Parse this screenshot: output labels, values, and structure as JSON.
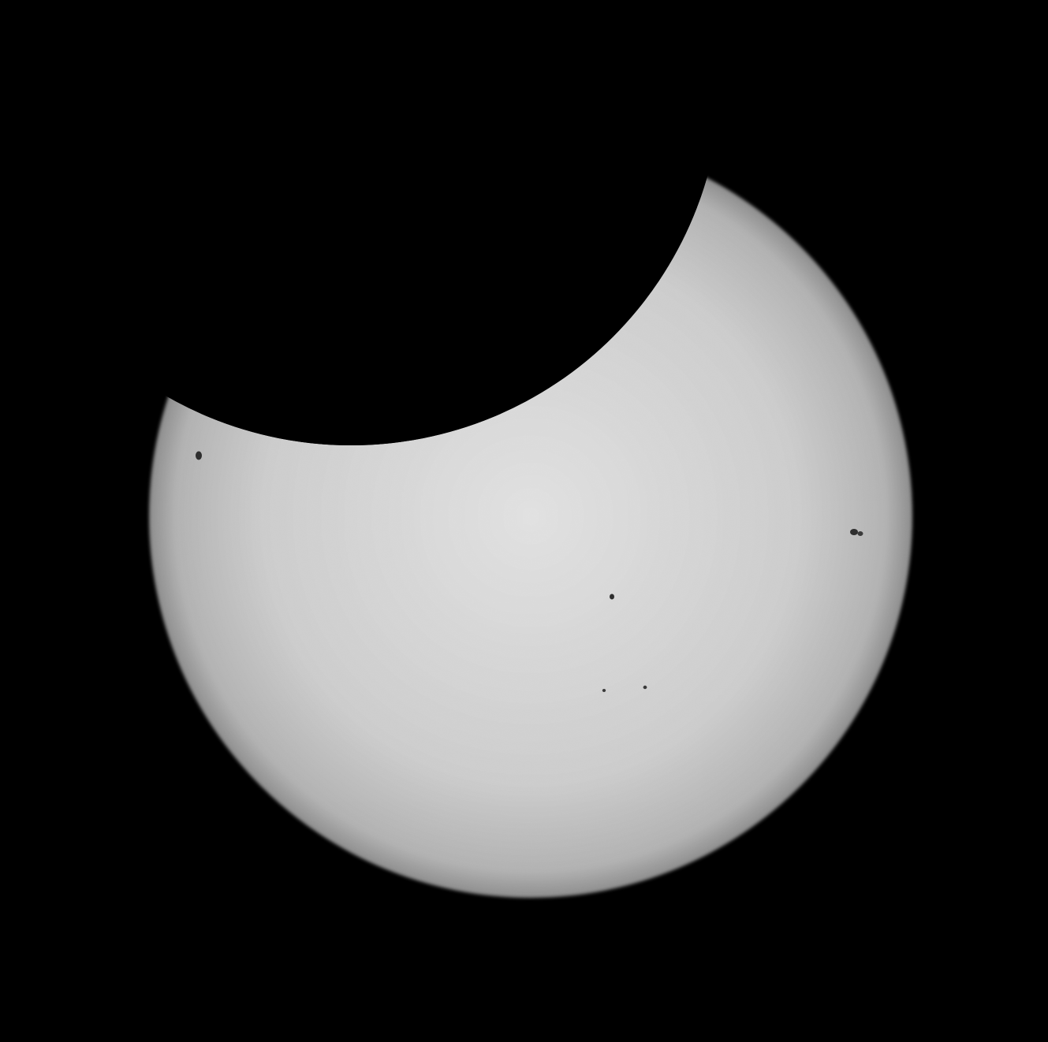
{
  "photo": {
    "subject": "partial-solar-eclipse",
    "colors": {
      "sky": "#000000",
      "sun_center": "#e2e2e2",
      "sun_mid": "#cdcdcd",
      "sun_limb": "#8e8e8e",
      "sunspot": "#2e2e2e"
    },
    "sunspot_count": 5
  }
}
